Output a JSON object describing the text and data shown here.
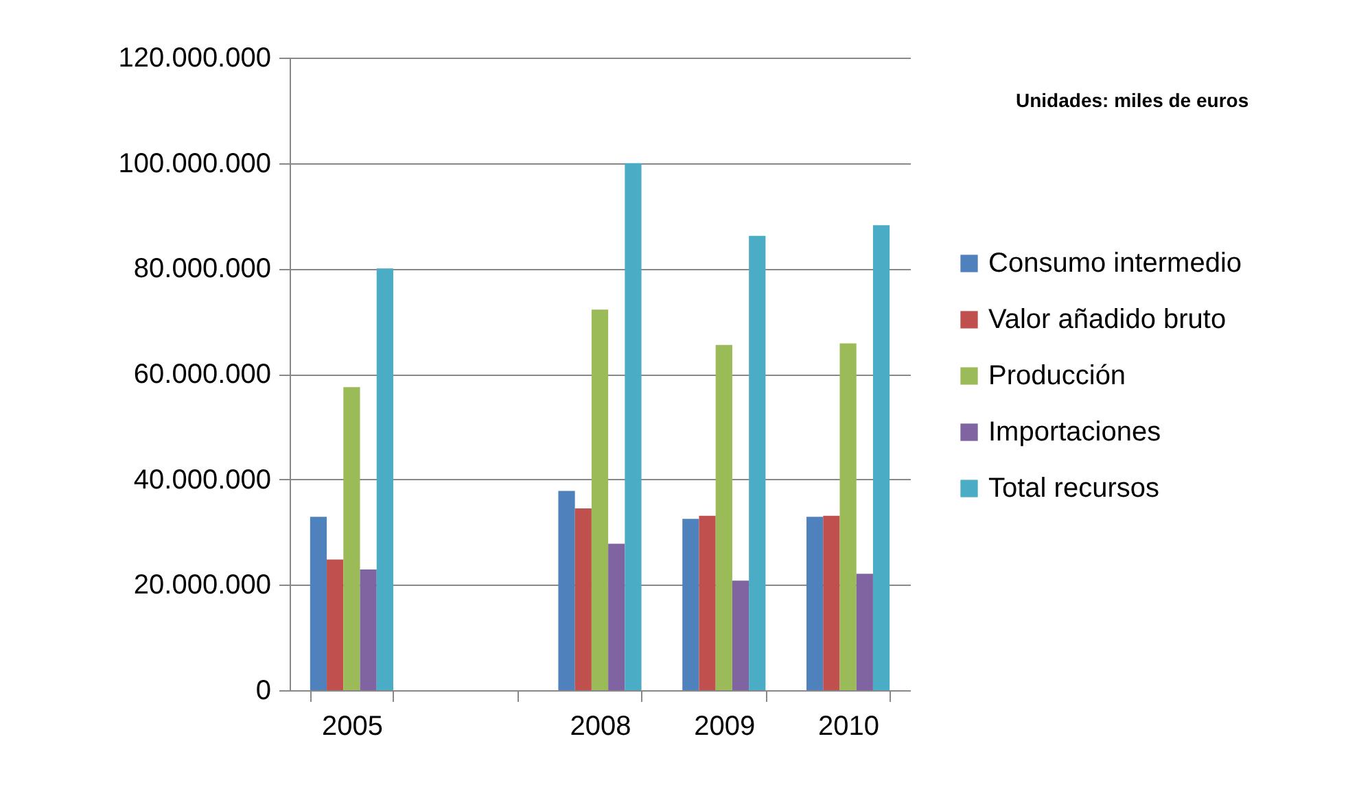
{
  "chart_data": {
    "type": "bar",
    "categories": [
      "2005",
      null,
      "2008",
      "2009",
      "2010"
    ],
    "series": [
      {
        "name": "Consumo intermedio",
        "color": "#4f81bd",
        "values": [
          32900000,
          null,
          37800000,
          32500000,
          32900000
        ]
      },
      {
        "name": "Valor añadido bruto",
        "color": "#c0504d",
        "values": [
          24800000,
          null,
          34500000,
          33100000,
          33100000
        ]
      },
      {
        "name": "Producción",
        "color": "#9bbb59",
        "values": [
          57500000,
          null,
          72200000,
          65500000,
          65800000
        ]
      },
      {
        "name": "Importaciones",
        "color": "#8064a2",
        "values": [
          22900000,
          null,
          27800000,
          20800000,
          22100000
        ]
      },
      {
        "name": "Total recursos",
        "color": "#4bacc6",
        "values": [
          80000000,
          null,
          100000000,
          86200000,
          88200000
        ]
      }
    ],
    "ylim": [
      0,
      120000000
    ],
    "yticks": [
      0,
      {
        "value": 20000000,
        "label": "20.000.000"
      },
      {
        "value": 40000000,
        "label": "40.000.000"
      },
      {
        "value": 60000000,
        "label": "60.000.000"
      },
      {
        "value": 80000000,
        "label": "80.000.000"
      },
      {
        "value": 100000000,
        "label": "100.000.000"
      },
      {
        "value": 120000000,
        "label": "120.000.000"
      }
    ],
    "grid": "y",
    "legend": "right",
    "annotations": [
      "Unidades: miles de euros"
    ]
  }
}
